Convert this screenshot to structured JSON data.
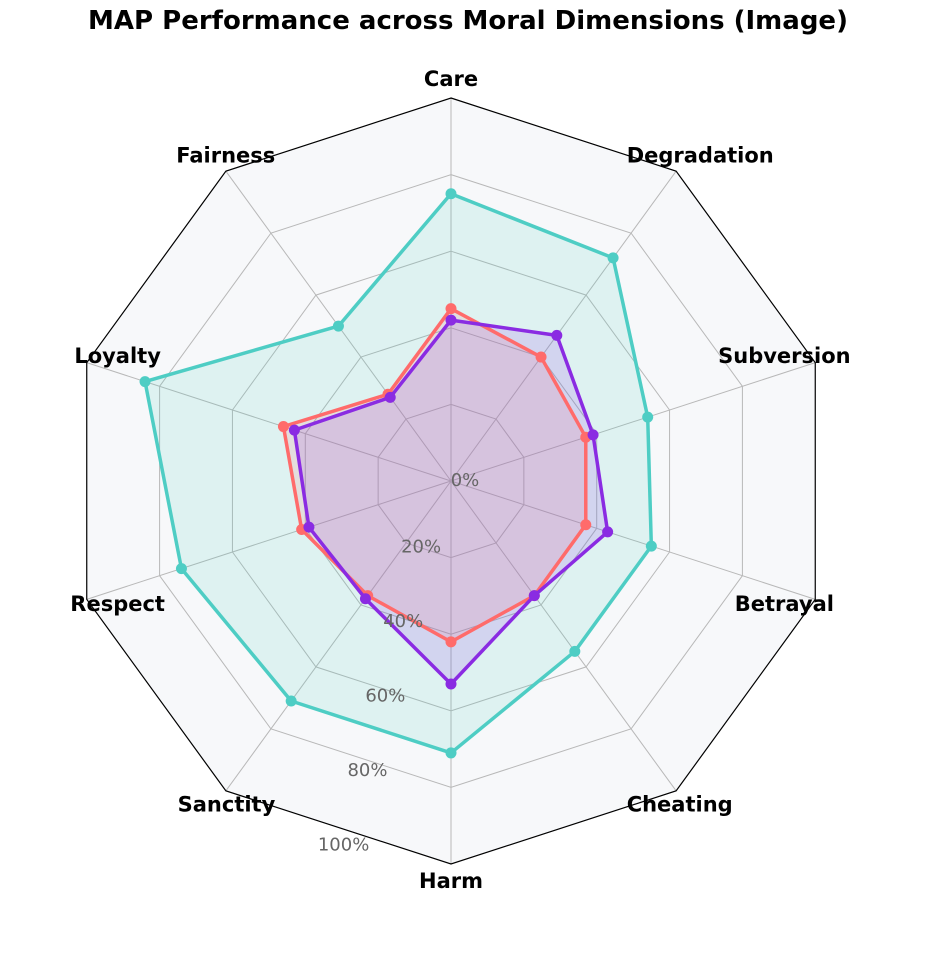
{
  "chart_data": {
    "type": "radar",
    "title": "MAP Performance across Moral Dimensions (Image)",
    "categories": [
      "Care",
      "Degradation",
      "Subversion",
      "Betrayal",
      "Cheating",
      "Harm",
      "Sanctity",
      "Respect",
      "Loyalty",
      "Fairness"
    ],
    "radial_ticks": [
      "0%",
      "20%",
      "40%",
      "60%",
      "80%",
      "100%"
    ],
    "radial_range": [
      0,
      100
    ],
    "grid": true,
    "legend": "none",
    "series": [
      {
        "color": "#4ECDC4",
        "values": [
          75,
          72,
          54,
          55,
          55,
          71,
          71,
          74,
          84,
          50
        ]
      },
      {
        "color": "#FF6B6B",
        "values": [
          45,
          40,
          37,
          37,
          37,
          42,
          37,
          41,
          46,
          28
        ]
      },
      {
        "color": "#8A2BE2",
        "values": [
          42,
          47,
          39,
          43,
          37,
          53,
          38,
          39,
          43,
          27
        ]
      }
    ],
    "background_color": "#F7F8FA"
  }
}
